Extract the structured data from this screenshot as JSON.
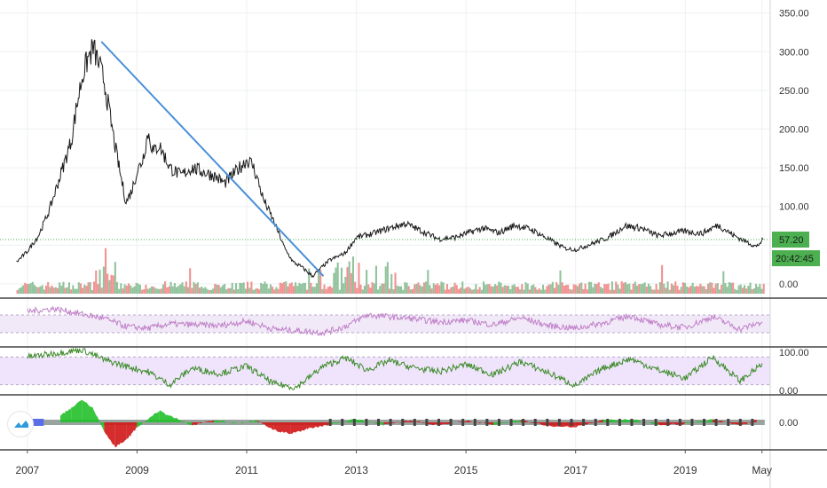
{
  "colors": {
    "grid": "#eef0f2",
    "price": "#1a1a1a",
    "trendline": "#4a90d9",
    "last_price_line": "#4caf50",
    "vol_up": "#7fb98c",
    "vol_down": "#f07f7f",
    "rsi": "#c080c8",
    "rsi_band": "#f1e9f8",
    "osc": "#3c8a28",
    "osc_band": "#efe4fb",
    "hist_pos": "#22c02a",
    "hist_neg": "#d01616",
    "label_bg": "#4caf50",
    "label_text": "#1a1a1a"
  },
  "chart_data": [
    {
      "type": "line",
      "pane": "price",
      "x_ticks": [
        "2007",
        "2009",
        "2011",
        "2013",
        "2015",
        "2017",
        "2019",
        "May"
      ],
      "x_range": [
        2006.5,
        2020.55
      ],
      "ylim": [
        -15,
        360
      ],
      "y_ticks": [
        "350.00",
        "300.00",
        "250.00",
        "200.00",
        "150.00",
        "100.00",
        "0.00"
      ],
      "y_tick_values": [
        350,
        300,
        250,
        200,
        150,
        100,
        0
      ],
      "series": [
        {
          "x": [
            2006.8,
            2007.0,
            2007.2,
            2007.4,
            2007.6,
            2007.8,
            2007.9,
            2008.0,
            2008.1,
            2008.2,
            2008.3,
            2008.4,
            2008.5,
            2008.6,
            2008.7,
            2008.8,
            2008.9,
            2009.0,
            2009.1,
            2009.2,
            2009.3,
            2009.4,
            2009.5,
            2009.6,
            2009.8,
            2010.0,
            2010.2,
            2010.4,
            2010.6,
            2010.8,
            2011.0,
            2011.1,
            2011.2,
            2011.3,
            2011.5,
            2011.7,
            2011.85,
            2012.0,
            2012.2,
            2012.5,
            2012.8,
            2013.0,
            2013.3,
            2013.6,
            2013.9,
            2014.2,
            2014.5,
            2014.8,
            2015.0,
            2015.3,
            2015.6,
            2015.9,
            2016.2,
            2016.5,
            2016.8,
            2017.0,
            2017.3,
            2017.6,
            2017.9,
            2018.2,
            2018.5,
            2018.8,
            2019.0,
            2019.3,
            2019.6,
            2019.9,
            2020.1,
            2020.3,
            2020.42
          ],
          "y": [
            28,
            42,
            62,
            95,
            140,
            185,
            230,
            268,
            290,
            305,
            285,
            262,
            220,
            178,
            140,
            105,
            120,
            145,
            160,
            195,
            170,
            180,
            165,
            150,
            140,
            150,
            145,
            140,
            130,
            145,
            160,
            155,
            135,
            110,
            80,
            45,
            28,
            22,
            10,
            30,
            40,
            60,
            65,
            72,
            78,
            68,
            58,
            60,
            65,
            72,
            66,
            76,
            70,
            58,
            46,
            44,
            52,
            60,
            75,
            72,
            62,
            66,
            68,
            65,
            76,
            62,
            55,
            48,
            57.2
          ]
        }
      ],
      "trendline": {
        "from": [
          2008.35,
          313
        ],
        "to": [
          2012.4,
          10
        ]
      },
      "last_price": "57.20",
      "countdown": "20:42:45",
      "volume": {
        "ylim": [
          0,
          40
        ]
      }
    },
    {
      "type": "line",
      "pane": "rsi",
      "ylim": [
        0,
        100
      ],
      "band": [
        30,
        70
      ],
      "series": [
        {
          "x": [
            2007.0,
            2007.5,
            2008.0,
            2008.4,
            2008.8,
            2009.2,
            2009.6,
            2010.0,
            2010.5,
            2011.0,
            2011.5,
            2012.0,
            2012.4,
            2012.8,
            2013.2,
            2013.6,
            2014.0,
            2014.5,
            2015.0,
            2015.5,
            2016.0,
            2016.5,
            2017.0,
            2017.5,
            2018.0,
            2018.5,
            2019.0,
            2019.5,
            2020.0,
            2020.42
          ],
          "y": [
            78,
            84,
            72,
            62,
            44,
            40,
            50,
            48,
            46,
            56,
            38,
            34,
            30,
            44,
            70,
            66,
            62,
            54,
            58,
            48,
            64,
            46,
            40,
            52,
            68,
            48,
            42,
            66,
            38,
            55
          ]
        }
      ]
    },
    {
      "type": "line",
      "pane": "oscillator",
      "ylim": [
        0,
        100
      ],
      "y_ticks": [
        "100.00",
        "0.00"
      ],
      "y_tick_values": [
        100,
        0
      ],
      "band": [
        20,
        80
      ],
      "series": [
        {
          "x": [
            2007.0,
            2007.5,
            2008.0,
            2008.4,
            2008.8,
            2009.2,
            2009.6,
            2010.0,
            2010.5,
            2011.0,
            2011.5,
            2011.9,
            2012.4,
            2012.8,
            2013.2,
            2013.6,
            2014.0,
            2014.5,
            2015.0,
            2015.5,
            2016.0,
            2016.5,
            2017.0,
            2017.5,
            2018.0,
            2018.5,
            2019.0,
            2019.5,
            2020.0,
            2020.42
          ],
          "y": [
            80,
            88,
            96,
            74,
            60,
            48,
            20,
            56,
            44,
            60,
            22,
            14,
            60,
            78,
            52,
            72,
            58,
            48,
            64,
            42,
            70,
            46,
            18,
            56,
            76,
            52,
            34,
            80,
            28,
            66
          ]
        }
      ]
    },
    {
      "type": "bar",
      "pane": "histogram",
      "ylim": [
        -1,
        1
      ],
      "y_ticks": [
        "0.00"
      ],
      "y_tick_values": [
        0
      ],
      "x": [
        2007.6,
        2007.8,
        2008.0,
        2008.2,
        2008.4,
        2008.6,
        2008.8,
        2009.0,
        2009.4,
        2009.6,
        2010.0,
        2010.4,
        2010.8,
        2011.2,
        2011.5,
        2011.8,
        2012.1,
        2012.5,
        2013.0,
        2013.5,
        2014.0,
        2014.5,
        2015.0,
        2015.5,
        2016.0,
        2016.5,
        2017.0,
        2017.5,
        2018.0,
        2018.5,
        2019.0,
        2019.5,
        2020.0,
        2020.3
      ],
      "values": [
        0.25,
        0.55,
        0.9,
        0.55,
        -0.35,
        -0.95,
        -0.7,
        -0.2,
        0.45,
        0.25,
        -0.12,
        0.08,
        -0.05,
        0.06,
        -0.3,
        -0.45,
        -0.25,
        -0.08,
        0.12,
        -0.1,
        0.08,
        -0.12,
        0.06,
        -0.08,
        0.1,
        -0.14,
        -0.18,
        0.08,
        0.12,
        -0.1,
        -0.06,
        0.1,
        -0.12,
        0.08
      ]
    }
  ]
}
